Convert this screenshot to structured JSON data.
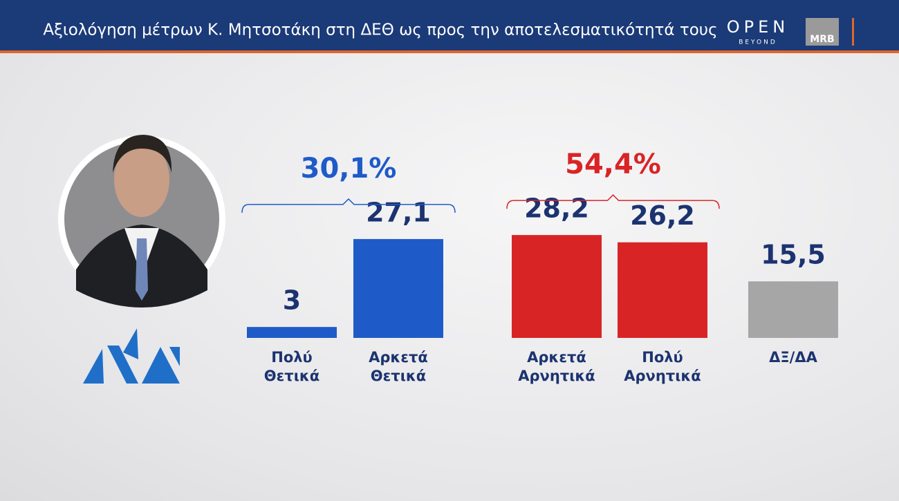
{
  "header": {
    "title": "Αξιολόγηση μέτρων Κ. Μητσοτάκη στη ΔΕΘ ως προς την αποτελεσματικότητά τους",
    "logo_main": "OPEN",
    "logo_sub": "BEYOND",
    "logo_pollster": "MRB"
  },
  "chart_data": {
    "type": "bar",
    "categories": [
      "Πολύ Θετικά",
      "Αρκετά Θετικά",
      "Αρκετά Αρνητικά",
      "Πολύ Αρνητικά",
      "ΔΞ/ΔΑ"
    ],
    "values": [
      3,
      27.1,
      28.2,
      26.2,
      15.5
    ],
    "value_labels": [
      "3",
      "27,1",
      "28,2",
      "26,2",
      "15,5"
    ],
    "colors": [
      "#1f5bc8",
      "#1f5bc8",
      "#d92426",
      "#d92426",
      "#a6a6a6"
    ],
    "groups": [
      {
        "value": 30.1,
        "label": "30,1%",
        "color": "#1f5bc8",
        "categories": [
          "Πολύ Θετικά",
          "Αρκετά Θετικά"
        ]
      },
      {
        "value": 54.4,
        "label": "54,4%",
        "color": "#d92426",
        "categories": [
          "Αρκετά Αρνητικά",
          "Πολύ Αρνητικά"
        ]
      }
    ]
  }
}
